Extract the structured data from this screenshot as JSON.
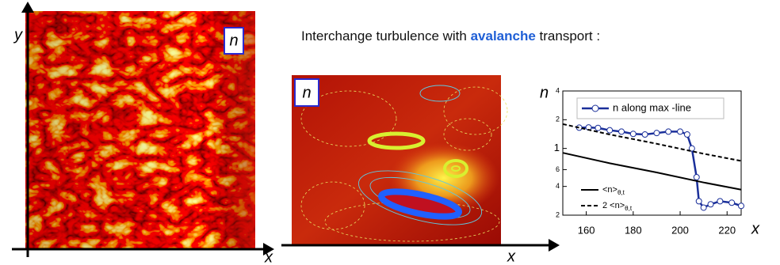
{
  "title": {
    "before": "Interchange turbulence with ",
    "highlight": "avalanche",
    "after": " transport :"
  },
  "left_panel": {
    "label": "n",
    "x_axis": "x",
    "y_axis": "y"
  },
  "middle_panel": {
    "label": "n",
    "x_axis": "x"
  },
  "chart_data": {
    "type": "line",
    "x_label": "x",
    "y_label": "n",
    "xlim": [
      150,
      226
    ],
    "xticks": [
      160,
      180,
      200,
      220
    ],
    "ylim": [
      0.2,
      4
    ],
    "log_y": true,
    "yticks": [
      {
        "value": 0.2,
        "label": "2"
      },
      {
        "value": 0.4,
        "label": "4"
      },
      {
        "value": 0.6,
        "label": "6"
      },
      1,
      2,
      4
    ],
    "series": [
      {
        "name": "n along max -line",
        "color": "#1a2f9a",
        "marker": "circle",
        "dashed": false,
        "x": [
          157,
          161,
          165,
          170,
          175,
          180,
          185,
          190,
          195,
          200,
          203,
          205,
          207,
          208,
          210,
          213,
          217,
          222,
          226
        ],
        "values": [
          1.65,
          1.66,
          1.64,
          1.55,
          1.5,
          1.42,
          1.4,
          1.45,
          1.5,
          1.5,
          1.4,
          1.0,
          0.5,
          0.28,
          0.24,
          0.26,
          0.28,
          0.27,
          0.25
        ]
      },
      {
        "name": "<n>",
        "name_subscript": "θ,t",
        "color": "#000000",
        "dashed": false,
        "x": [
          150,
          170,
          190,
          210,
          226
        ],
        "values": [
          0.9,
          0.7,
          0.56,
          0.44,
          0.37
        ]
      },
      {
        "name": "2 <n>",
        "name_subscript": "θ,t",
        "color": "#000000",
        "dashed": true,
        "x": [
          150,
          170,
          190,
          210,
          226
        ],
        "values": [
          1.8,
          1.4,
          1.12,
          0.88,
          0.74
        ]
      }
    ]
  }
}
